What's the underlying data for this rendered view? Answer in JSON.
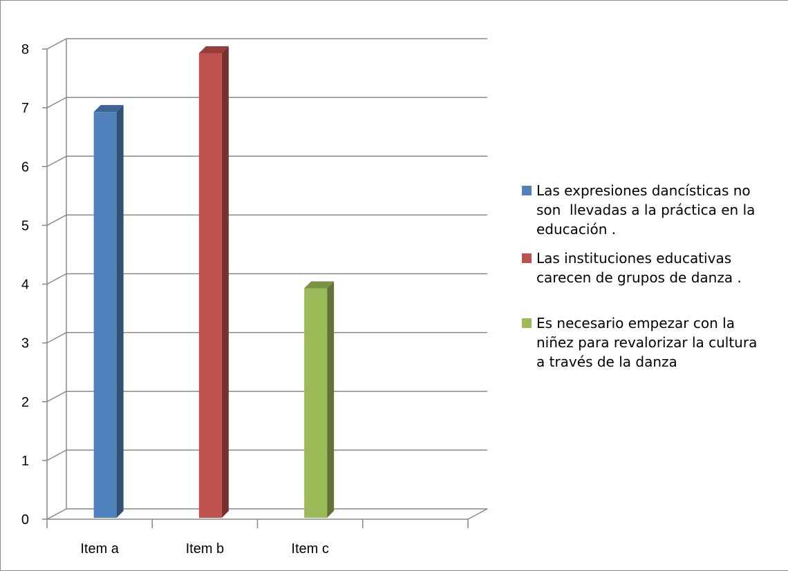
{
  "chart_data": {
    "type": "bar",
    "title": "",
    "xlabel": "",
    "ylabel": "",
    "categories": [
      "Item a",
      "Item b",
      "Item c"
    ],
    "ylim": [
      0,
      8
    ],
    "yticks": [
      "0",
      "1",
      "2",
      "3",
      "4",
      "5",
      "6",
      "7",
      "8"
    ],
    "grid": true,
    "three_d": true,
    "legend_position": "right",
    "series": [
      {
        "name": "Las expresiones dancísticas no\nson  llevadas a la práctica en la\neducación .",
        "color": "#4f81bd",
        "values": [
          7,
          null,
          null
        ]
      },
      {
        "name": "Las instituciones educativas\ncarecen de grupos de danza .",
        "color": "#c0504d",
        "values": [
          null,
          8,
          null
        ]
      },
      {
        "name": "Es necesario empezar con la\nniñez para revalorizar la cultura\na través de la danza",
        "color": "#9bbb59",
        "values": [
          null,
          null,
          4
        ]
      }
    ]
  }
}
